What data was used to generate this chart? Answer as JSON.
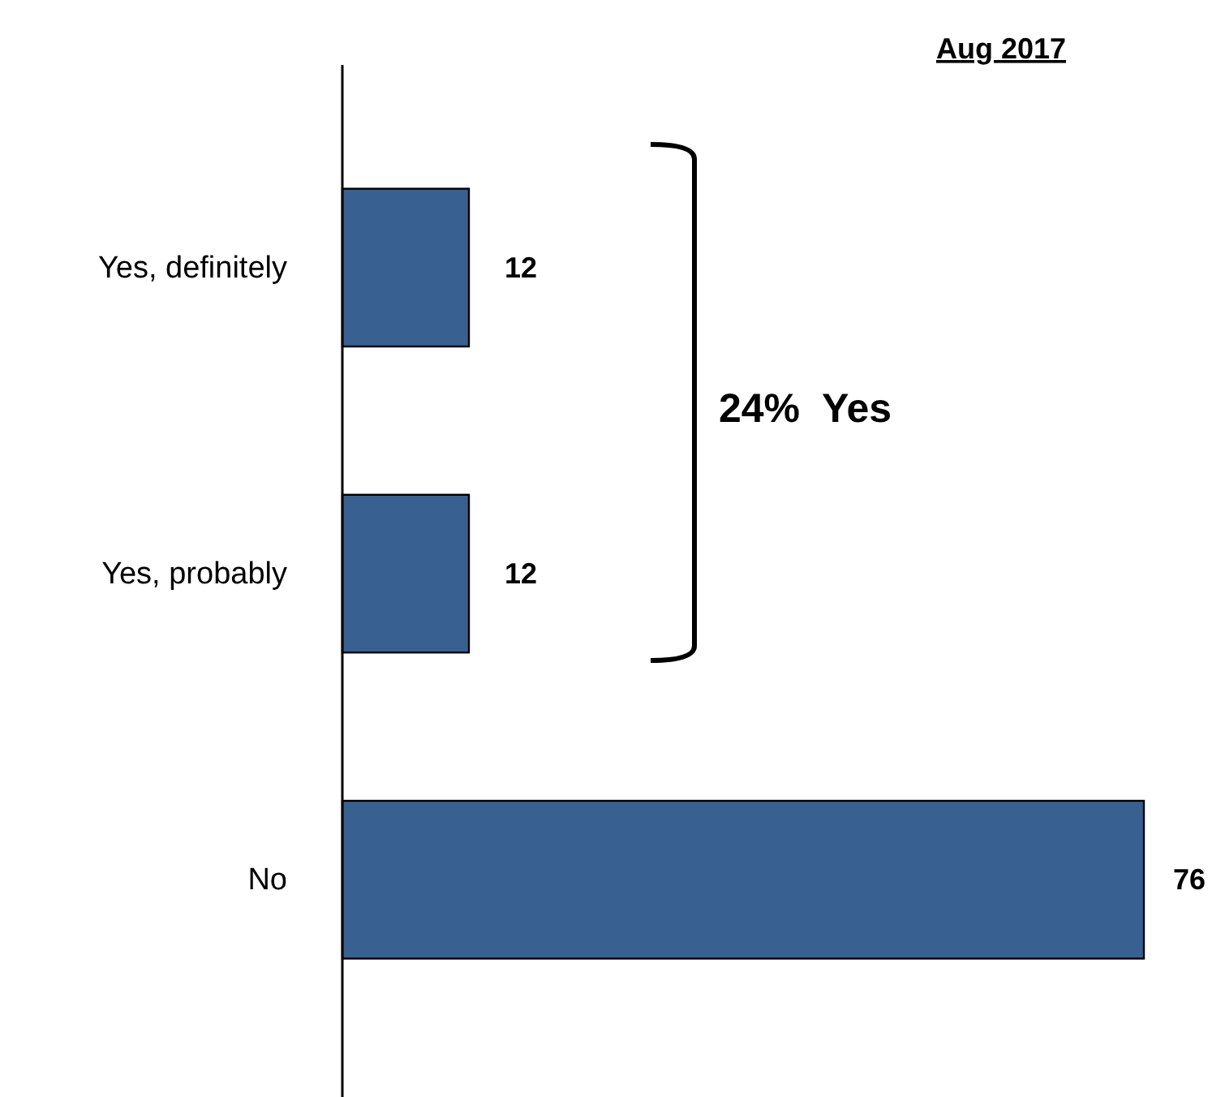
{
  "chart_data": {
    "type": "bar",
    "orientation": "horizontal",
    "title": "Aug 2017",
    "categories": [
      "Yes, definitely",
      "Yes, probably",
      "No"
    ],
    "values": [
      12,
      12,
      76
    ],
    "color": "#386192",
    "data_labels": true,
    "annotations": [
      "24%  Yes"
    ]
  }
}
